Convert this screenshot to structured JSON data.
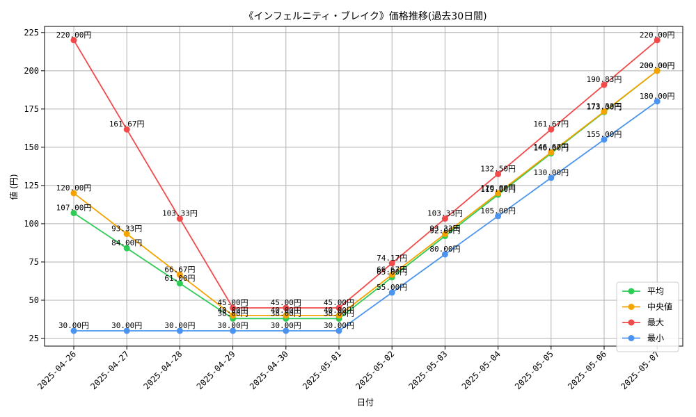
{
  "chart_data": {
    "type": "line",
    "title": "《インフェルニティ・ブレイク》価格推移(過去30日間)",
    "xlabel": "日付",
    "ylabel": "値 (円)",
    "categories": [
      "2025-04-26",
      "2025-04-27",
      "2025-04-28",
      "2025-04-29",
      "2025-04-30",
      "2025-05-01",
      "2025-05-02",
      "2025-05-03",
      "2025-05-04",
      "2025-05-05",
      "2025-05-06",
      "2025-05-07"
    ],
    "ylim": [
      20,
      229
    ],
    "yticks": [
      25,
      50,
      75,
      100,
      125,
      150,
      175,
      200,
      225
    ],
    "grid": true,
    "legend_position": "lower-right",
    "value_suffix": "円",
    "series": [
      {
        "name": "平均",
        "color": "#2ecc55",
        "values": [
          107.0,
          84.0,
          61.0,
          38.0,
          38.0,
          38.0,
          65.0,
          92.0,
          119.0,
          146.0,
          173.0,
          200.0
        ]
      },
      {
        "name": "中央値",
        "color": "#f5a300",
        "values": [
          120.0,
          93.33,
          66.67,
          40.0,
          40.0,
          40.0,
          66.67,
          93.33,
          120.0,
          146.67,
          173.33,
          200.0
        ]
      },
      {
        "name": "最大",
        "color": "#f04a4a",
        "values": [
          220.0,
          161.67,
          103.33,
          45.0,
          45.0,
          45.0,
          74.17,
          103.33,
          132.5,
          161.67,
          190.83,
          220.0
        ]
      },
      {
        "name": "最小",
        "color": "#4a94f0",
        "values": [
          30.0,
          30.0,
          30.0,
          30.0,
          30.0,
          30.0,
          55.0,
          80.0,
          105.0,
          130.0,
          155.0,
          180.0
        ]
      }
    ]
  }
}
